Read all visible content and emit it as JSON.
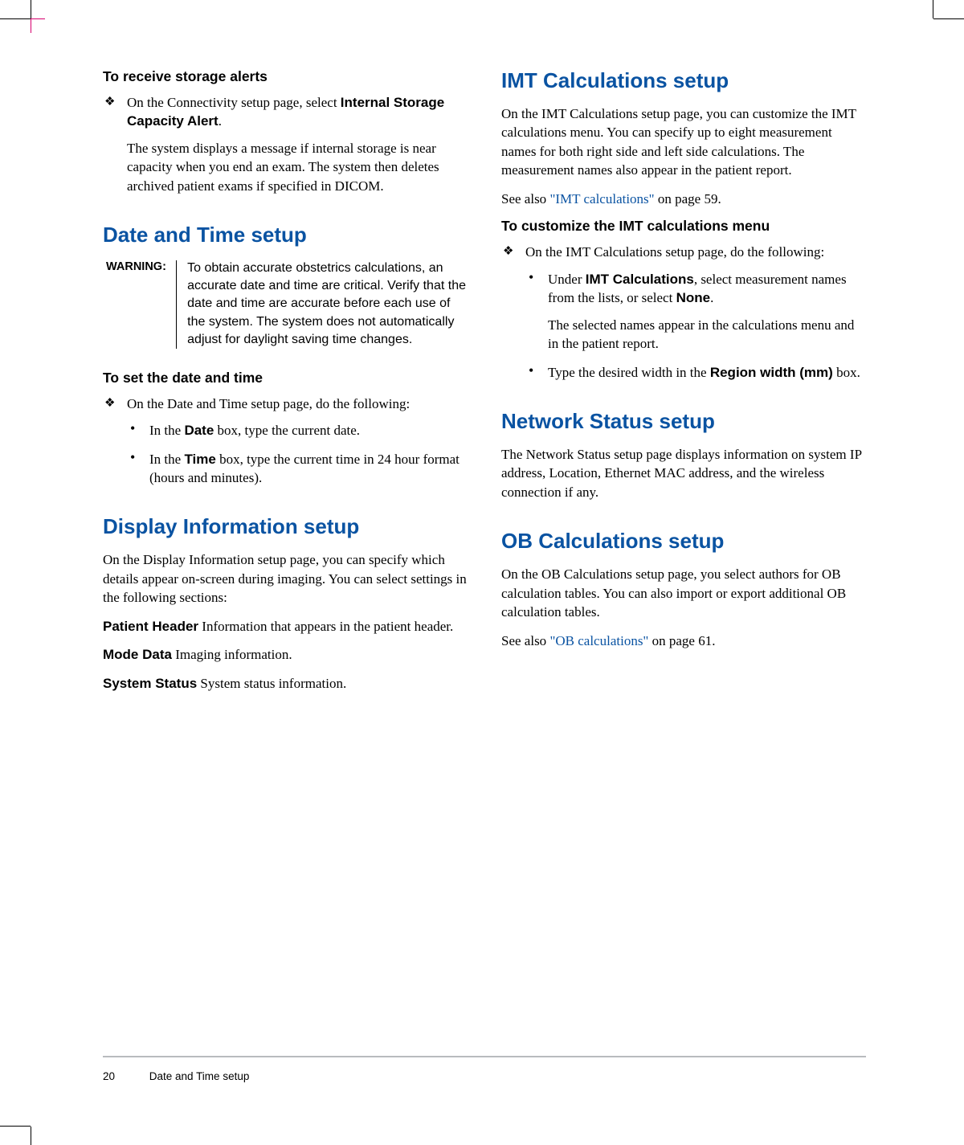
{
  "colors": {
    "heading_blue": "#0a53a2",
    "link_blue": "#0a53a2",
    "text": "#000000",
    "rule": "#b9bbbe",
    "crop_accent": "#d6006d",
    "background": "#ffffff"
  },
  "typography": {
    "body_family": "Palatino, Georgia, serif",
    "heading_family": "Segoe UI, Helvetica Neue, Arial, sans-serif",
    "section_heading_pt": 26,
    "sub_heading_pt": 17.5,
    "body_pt": 17,
    "warning_label_pt": 14.5,
    "warning_body_pt": 16,
    "footer_pt": 13.5
  },
  "left": {
    "storage": {
      "heading": "To receive storage alerts",
      "li1a": "On the Connectivity setup page, select ",
      "li1b": "Internal Storage Capacity Alert",
      "li1c": ".",
      "li1p2": "The system displays a message if internal storage is near capacity when you end an exam. The system then deletes archived patient exams if specified in DICOM."
    },
    "datetime": {
      "heading": "Date and Time setup",
      "warning_label": "WARNING:",
      "warning_text": "To obtain accurate obstetrics calculations, an accurate date and time are critical. Verify that the date and time are accurate before each use of the system. The system does not automatically adjust for daylight saving time changes.",
      "sub": "To set the date and time",
      "li1": "On the Date and Time setup page, do the following:",
      "b1a": "In the ",
      "b1b": "Date",
      "b1c": " box, type the current date.",
      "b2a": "In the ",
      "b2b": "Time",
      "b2c": " box, type the current time in 24 hour format (hours and minutes)."
    },
    "display": {
      "heading": "Display Information setup",
      "p1": "On the Display Information setup page, you can specify which details appear on-screen during imaging. You can select settings in the following sections:",
      "r1a": "Patient Header",
      "r1b": " Information that appears in the patient header.",
      "r2a": "Mode Data",
      "r2b": " Imaging information.",
      "r3a": "System Status",
      "r3b": " System status information."
    }
  },
  "right": {
    "imt": {
      "heading": "IMT Calculations setup",
      "p1": "On the IMT Calculations setup page, you can customize the IMT calculations menu. You can specify up to eight measurement names for both right side and left side calculations. The measurement names also appear in the patient report.",
      "see_a": "See also ",
      "see_link": "\"IMT calculations\"",
      "see_b": " on page 59.",
      "sub": "To customize the IMT calculations menu",
      "li1": "On the IMT Calculations setup page, do the following:",
      "b1a": "Under ",
      "b1b": "IMT Calculations",
      "b1c": ", select measurement names from the lists, or select ",
      "b1d": "None",
      "b1e": ".",
      "b1p2": "The selected names appear in the calculations menu and in the patient report.",
      "b2a": "Type the desired width in the ",
      "b2b": "Region width (mm)",
      "b2c": " box."
    },
    "network": {
      "heading": "Network Status setup",
      "p1": "The Network Status setup page displays information on system IP address, Location, Ethernet MAC address, and the wireless connection if any."
    },
    "ob": {
      "heading": "OB Calculations setup",
      "p1": "On the OB Calculations setup page, you select authors for OB calculation tables. You can also import or export additional OB calculation tables.",
      "see_a": "See also ",
      "see_link": "\"OB calculations\"",
      "see_b": " on page 61."
    }
  },
  "footer": {
    "page": "20",
    "section": "Date and Time setup"
  }
}
